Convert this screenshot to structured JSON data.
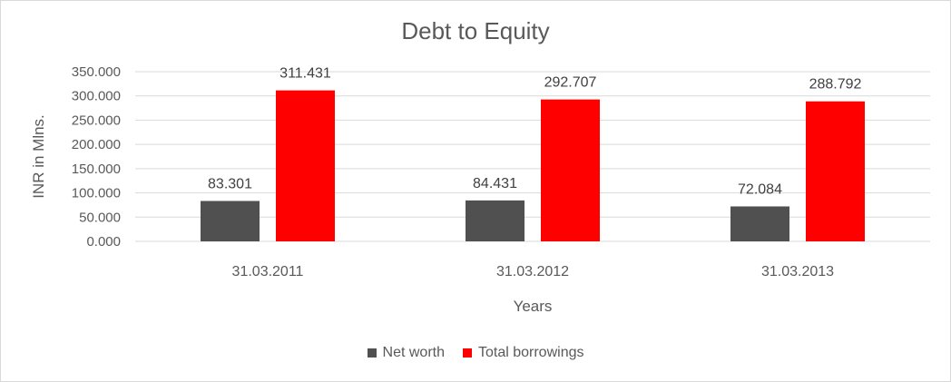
{
  "chart_data": {
    "type": "bar",
    "title": "Debt to Equity",
    "xlabel": "Years",
    "ylabel": "INR in Mlns.",
    "categories": [
      "31.03.2011",
      "31.03.2012",
      "31.03.2013"
    ],
    "series": [
      {
        "name": "Net worth",
        "color": "#505050",
        "values": [
          83.301,
          84.431,
          72.084
        ],
        "labels": [
          "83.301",
          "84.431",
          "72.084"
        ]
      },
      {
        "name": "Total borrowings",
        "color": "#ff0000",
        "values": [
          311.431,
          292.707,
          288.792
        ],
        "labels": [
          "311.431",
          "292.707",
          "288.792"
        ]
      }
    ],
    "ylim": [
      0,
      350
    ],
    "yticks": [
      "0.000",
      "50.000",
      "100.000",
      "150.000",
      "200.000",
      "250.000",
      "300.000",
      "350.000"
    ],
    "grid": true,
    "legend_position": "bottom"
  }
}
